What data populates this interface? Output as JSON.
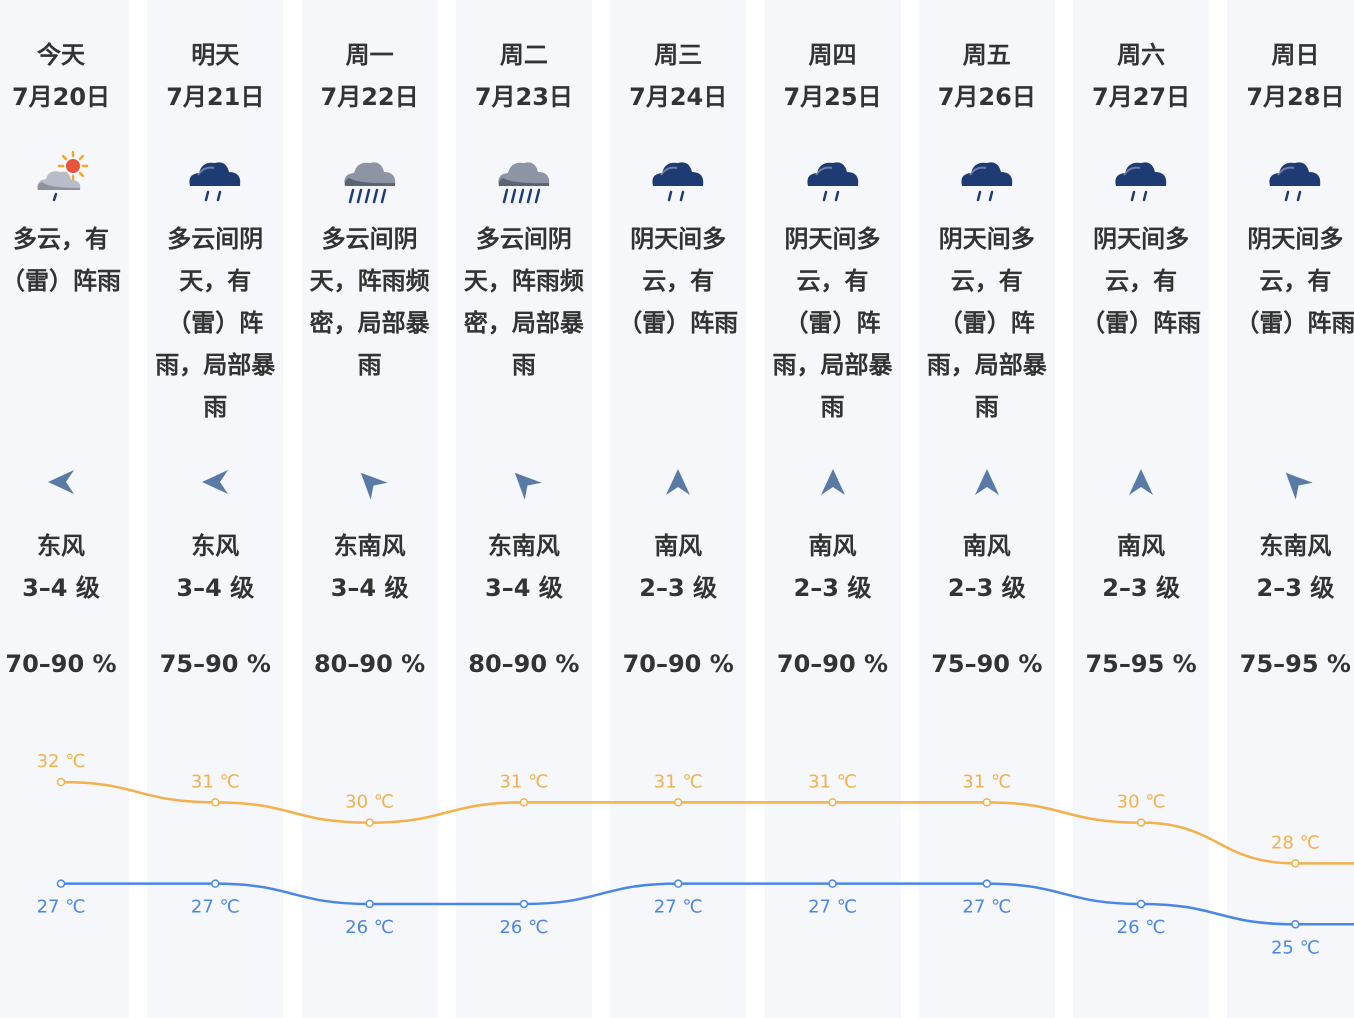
{
  "colors": {
    "column_bg": "#f5f7fb",
    "high_line": "#f4b04a",
    "low_line": "#4a86e8",
    "icon_cloud": "#1f3b73",
    "text": "#333333"
  },
  "days": [
    {
      "day": "今天",
      "date": "7月20日",
      "condition": "多云，有（雷）阵雨",
      "icon": "partly-cloudy-rain-icon",
      "wind_dir": "东风",
      "wind_arrow": "arrow-left-icon",
      "wind_level": "3–4 级",
      "humidity": "70–90 %",
      "high": "32 ℃",
      "low": "27 ℃"
    },
    {
      "day": "明天",
      "date": "7月21日",
      "condition": "多云间阴天，有（雷）阵雨，局部暴雨",
      "icon": "cloud-rain-icon",
      "wind_dir": "东风",
      "wind_arrow": "arrow-left-icon",
      "wind_level": "3–4 级",
      "humidity": "75–90 %",
      "high": "31 ℃",
      "low": "27 ℃"
    },
    {
      "day": "周一",
      "date": "7月22日",
      "condition": "多云间阴天，阵雨频密，局部暴雨",
      "icon": "cloud-heavy-rain-icon",
      "wind_dir": "东南风",
      "wind_arrow": "arrow-up-left-icon",
      "wind_level": "3–4 级",
      "humidity": "80–90 %",
      "high": "30 ℃",
      "low": "26 ℃"
    },
    {
      "day": "周二",
      "date": "7月23日",
      "condition": "多云间阴天，阵雨频密，局部暴雨",
      "icon": "cloud-heavy-rain-icon",
      "wind_dir": "东南风",
      "wind_arrow": "arrow-up-left-icon",
      "wind_level": "3–4 级",
      "humidity": "80–90 %",
      "high": "31 ℃",
      "low": "26 ℃"
    },
    {
      "day": "周三",
      "date": "7月24日",
      "condition": "阴天间多云，有（雷）阵雨",
      "icon": "cloud-rain-icon",
      "wind_dir": "南风",
      "wind_arrow": "arrow-up-icon",
      "wind_level": "2–3 级",
      "humidity": "70–90 %",
      "high": "31 ℃",
      "low": "27 ℃"
    },
    {
      "day": "周四",
      "date": "7月25日",
      "condition": "阴天间多云，有（雷）阵雨，局部暴雨",
      "icon": "cloud-rain-icon",
      "wind_dir": "南风",
      "wind_arrow": "arrow-up-icon",
      "wind_level": "2–3 级",
      "humidity": "70–90 %",
      "high": "31 ℃",
      "low": "27 ℃"
    },
    {
      "day": "周五",
      "date": "7月26日",
      "condition": "阴天间多云，有（雷）阵雨，局部暴雨",
      "icon": "cloud-rain-icon",
      "wind_dir": "南风",
      "wind_arrow": "arrow-up-icon",
      "wind_level": "2–3 级",
      "humidity": "75–90 %",
      "high": "31 ℃",
      "low": "27 ℃"
    },
    {
      "day": "周六",
      "date": "7月27日",
      "condition": "阴天间多云，有（雷）阵雨",
      "icon": "cloud-rain-icon",
      "wind_dir": "南风",
      "wind_arrow": "arrow-up-icon",
      "wind_level": "2–3 级",
      "humidity": "75–95 %",
      "high": "30 ℃",
      "low": "26 ℃"
    },
    {
      "day": "周日",
      "date": "7月28日",
      "condition": "阴天间多云，有（雷）阵雨",
      "icon": "cloud-rain-icon",
      "wind_dir": "东南风",
      "wind_arrow": "arrow-up-left-icon",
      "wind_level": "2–3 级",
      "humidity": "75–95 %",
      "high": "28 ℃",
      "low": "25 ℃"
    }
  ],
  "chart_data": {
    "type": "line",
    "categories": [
      "7月20日",
      "7月21日",
      "7月22日",
      "7月23日",
      "7月24日",
      "7月25日",
      "7月26日",
      "7月27日",
      "7月28日"
    ],
    "series": [
      {
        "values": [
          32,
          31,
          30,
          31,
          31,
          31,
          31,
          30,
          28
        ]
      },
      {
        "values": [
          27,
          27,
          26,
          26,
          27,
          27,
          27,
          26,
          25
        ]
      }
    ]
  }
}
